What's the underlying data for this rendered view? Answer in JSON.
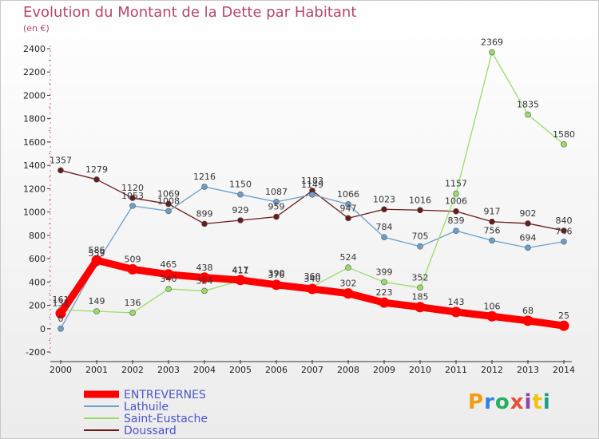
{
  "chart_data": {
    "type": "line",
    "title": "Evolution du Montant de la Dette par Habitant",
    "subtitle": "(en €)",
    "x": [
      "2000",
      "2001",
      "2002",
      "2003",
      "2004",
      "2005",
      "2006",
      "2007",
      "2008",
      "2009",
      "2010",
      "2011",
      "2012",
      "2013",
      "2014"
    ],
    "ylim": [
      -200,
      2400
    ],
    "yticks": [
      -200,
      0,
      200,
      400,
      600,
      800,
      1000,
      1200,
      1400,
      1600,
      1800,
      2000,
      2200,
      2400
    ],
    "grid": false,
    "legend_position": "bottom-left",
    "series": [
      {
        "name": "ENTREVERNES",
        "color": "#ff0000",
        "values": [
          131,
          586,
          509,
          465,
          438,
          417,
          376,
          340,
          302,
          223,
          185,
          143,
          106,
          68,
          25
        ]
      },
      {
        "name": "Lathuile",
        "color": "#6a9fcb",
        "values": [
          0,
          559,
          1053,
          1008,
          1216,
          1150,
          1087,
          1149,
          1066,
          784,
          705,
          839,
          756,
          694,
          746
        ]
      },
      {
        "name": "Saint-Eustache",
        "color": "#99dd66",
        "values": [
          161,
          149,
          136,
          340,
          324,
          411,
          390,
          360,
          524,
          399,
          352,
          1157,
          2369,
          1835,
          1580
        ]
      },
      {
        "name": "Doussard",
        "color": "#6b1a1a",
        "values": [
          1357,
          1279,
          1120,
          1069,
          899,
          929,
          959,
          1183,
          947,
          1023,
          1016,
          1006,
          917,
          902,
          840
        ]
      }
    ]
  },
  "logo": {
    "letters": [
      "P",
      "r",
      "o",
      "x",
      "i",
      "t",
      "i"
    ]
  }
}
